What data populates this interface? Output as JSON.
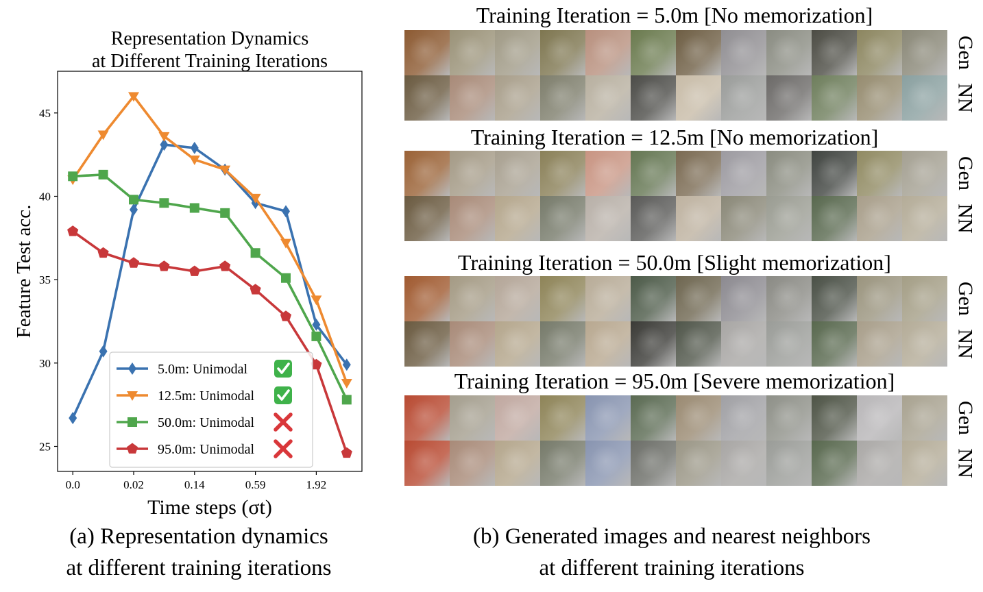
{
  "chart_data": {
    "type": "line",
    "title": [
      "Representation Dynamics",
      "at Different Training Iterations"
    ],
    "xlabel": "Time steps (σt)",
    "ylabel": "Feature Test acc.",
    "x_tick_labels": [
      "0.0",
      "0.02",
      "0.14",
      "0.59",
      "1.92"
    ],
    "x_tick_positions": [
      0,
      2,
      4,
      6,
      8
    ],
    "y_ticks": [
      "25",
      "30",
      "35",
      "40",
      "45"
    ],
    "ylim": [
      23.5,
      47.5
    ],
    "xlim": [
      -0.5,
      9.5
    ],
    "grid": false,
    "legend_position": "lower-center",
    "series": [
      {
        "name": "5.0m:  Unimodal",
        "status": "check",
        "color": "#3a72b0",
        "marker": "diamond",
        "x": [
          0,
          1,
          2,
          3,
          4,
          5,
          6,
          7,
          8,
          9
        ],
        "values": [
          26.7,
          30.7,
          39.2,
          43.1,
          42.9,
          41.6,
          39.6,
          39.1,
          32.3,
          29.9
        ]
      },
      {
        "name": "12.5m:  Unimodal",
        "status": "check",
        "color": "#ee8a30",
        "marker": "triangle-down",
        "x": [
          0,
          1,
          2,
          3,
          4,
          5,
          6,
          7,
          8,
          9
        ],
        "values": [
          41.0,
          43.7,
          46.0,
          43.6,
          42.2,
          41.6,
          39.9,
          37.2,
          33.8,
          28.8
        ]
      },
      {
        "name": "50.0m:   Unimodal",
        "status": "cross",
        "color": "#4fa64c",
        "marker": "square",
        "x": [
          0,
          1,
          2,
          3,
          4,
          5,
          6,
          7,
          8,
          9
        ],
        "values": [
          41.2,
          41.3,
          39.8,
          39.6,
          39.3,
          39.0,
          36.6,
          35.1,
          31.6,
          27.8
        ]
      },
      {
        "name": "95.0m: Unimodal",
        "status": "cross",
        "color": "#c8383a",
        "marker": "pentagon",
        "x": [
          0,
          1,
          2,
          3,
          4,
          5,
          6,
          7,
          8,
          9
        ],
        "values": [
          37.9,
          36.6,
          36.0,
          35.8,
          35.5,
          35.8,
          34.4,
          32.8,
          29.9,
          24.6
        ]
      }
    ]
  },
  "captions": {
    "a": [
      "(a) Representation dynamics",
      "at different training iterations"
    ],
    "b": [
      "(b) Generated images and nearest neighbors",
      "at different training iterations"
    ]
  },
  "panel_b": {
    "row_labels": {
      "gen": "Gen",
      "nn": "NN"
    },
    "groups": [
      {
        "title": "Training Iteration = 5.0m [No memorization]",
        "gen": [
          "#8c5a32",
          "#9a9278",
          "#a09a86",
          "#7e7650",
          "#b8907e",
          "#6a7a4e",
          "#6e5e44",
          "#908e92",
          "#8a8c82",
          "#4c4c44",
          "#8c8660",
          "#8a8878"
        ],
        "nn": [
          "#6a5a40",
          "#a88a78",
          "#a89e8a",
          "#7e7e6c",
          "#b8b0a0",
          "#4c4c48",
          "#c8bca8",
          "#9a9c9a",
          "#6c6a68",
          "#6e7e5c",
          "#968c70",
          "#8aa0a0"
        ]
      },
      {
        "title": "Training Iteration = 12.5m [No memorization]",
        "gen": [
          "#9a6236",
          "#a49a86",
          "#a8a090",
          "#8a8058",
          "#c89482",
          "#647652",
          "#7a6a52",
          "#9c9aa0",
          "#8a8c80",
          "#404440",
          "#908a62",
          "#a4a092"
        ],
        "nn": [
          "#6a5a40",
          "#a88a78",
          "#b4a68c",
          "#767a6a",
          "#b8b0a8",
          "#5a5a58",
          "#beb2a0",
          "#8a8878",
          "#9a9c92",
          "#58684e",
          "#a89e8a",
          "#b4ac98"
        ]
      },
      {
        "title": "Training Iteration = 50.0m [Slight memorization]",
        "gen": [
          "#a05a30",
          "#a49a84",
          "#b4a698",
          "#8e8458",
          "#b8ac98",
          "#4c5a48",
          "#6e6650",
          "#8c8a90",
          "#8a8a84",
          "#4a5046",
          "#9a947e",
          "#a49e86"
        ],
        "nn": [
          "#6a5a40",
          "#a88a78",
          "#b4a68c",
          "#767a6a",
          "#b8a890",
          "#3a3a36",
          "#50564a",
          "#a8a6a4",
          "#9a9c98",
          "#58684e",
          "#a89e8a",
          "#b4ac98"
        ]
      },
      {
        "title": "Training Iteration = 95.0m [Severe memorization]",
        "gen": [
          "#b84a32",
          "#a49e8e",
          "#c0a8a0",
          "#8e8458",
          "#8894b0",
          "#5a6a52",
          "#9a8a72",
          "#a0a0a4",
          "#8e9088",
          "#4e5446",
          "#b8b6b8",
          "#a8a290"
        ],
        "nn": [
          "#b84a32",
          "#a88a78",
          "#b4a68c",
          "#767a6a",
          "#8894b0",
          "#6c6e68",
          "#9a9686",
          "#a8a6a4",
          "#9a9c98",
          "#58684e",
          "#aaa8a6",
          "#b4ac98"
        ]
      }
    ]
  }
}
